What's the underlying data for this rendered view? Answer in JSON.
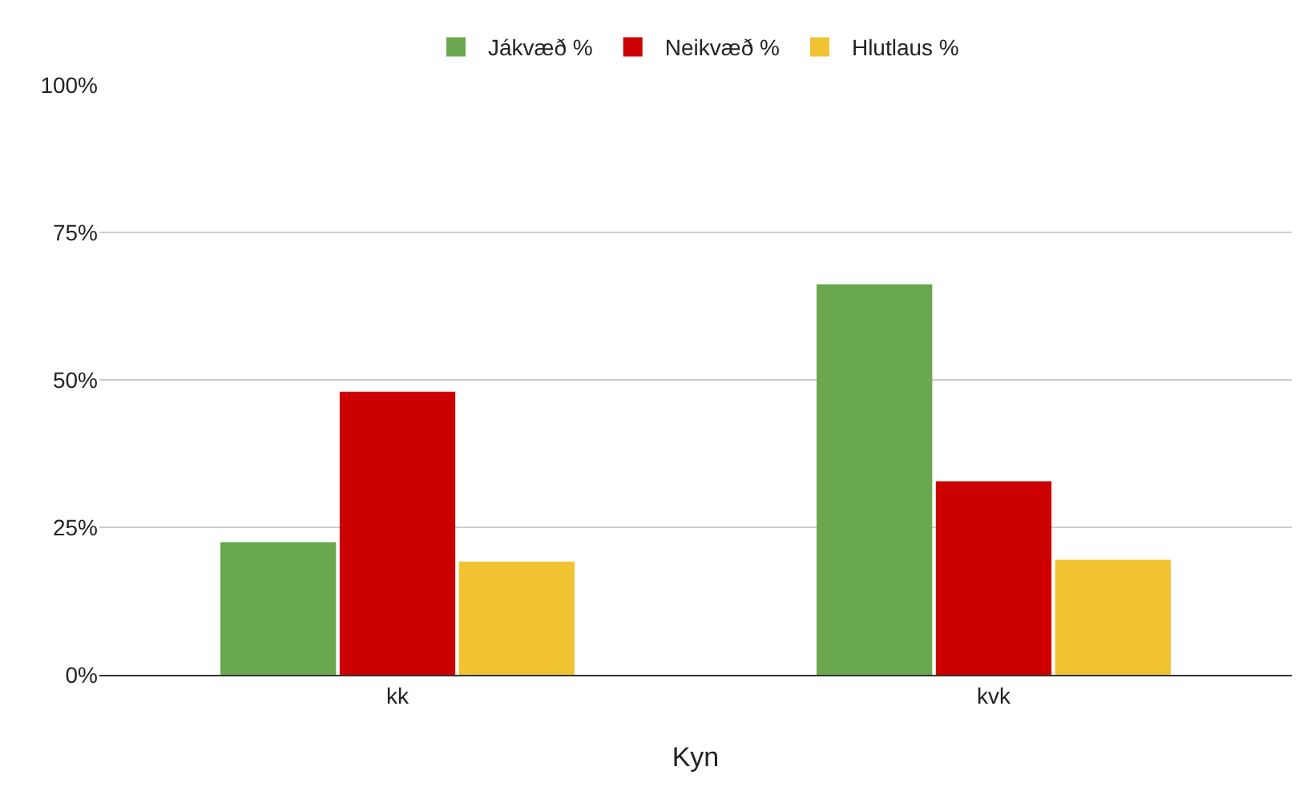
{
  "chart_data": {
    "type": "bar",
    "xlabel": "Kyn",
    "categories": [
      "kk",
      "kvk"
    ],
    "series": [
      {
        "name": "Jákvæð %",
        "color": "#6aa84f",
        "values": [
          22.5,
          66.2
        ]
      },
      {
        "name": "Neikvæð %",
        "color": "#cc0000",
        "values": [
          48,
          32.8
        ]
      },
      {
        "name": "Hlutlaus %",
        "color": "#f1c232",
        "values": [
          19.2,
          19.5
        ]
      }
    ],
    "ylim": [
      0,
      100
    ],
    "yticks": [
      {
        "value": 0,
        "label": "0%"
      },
      {
        "value": 25,
        "label": "25%"
      },
      {
        "value": 50,
        "label": "50%"
      },
      {
        "value": 75,
        "label": "75%"
      },
      {
        "value": 100,
        "label": "100%"
      }
    ],
    "grid": "y",
    "legend": "top"
  }
}
